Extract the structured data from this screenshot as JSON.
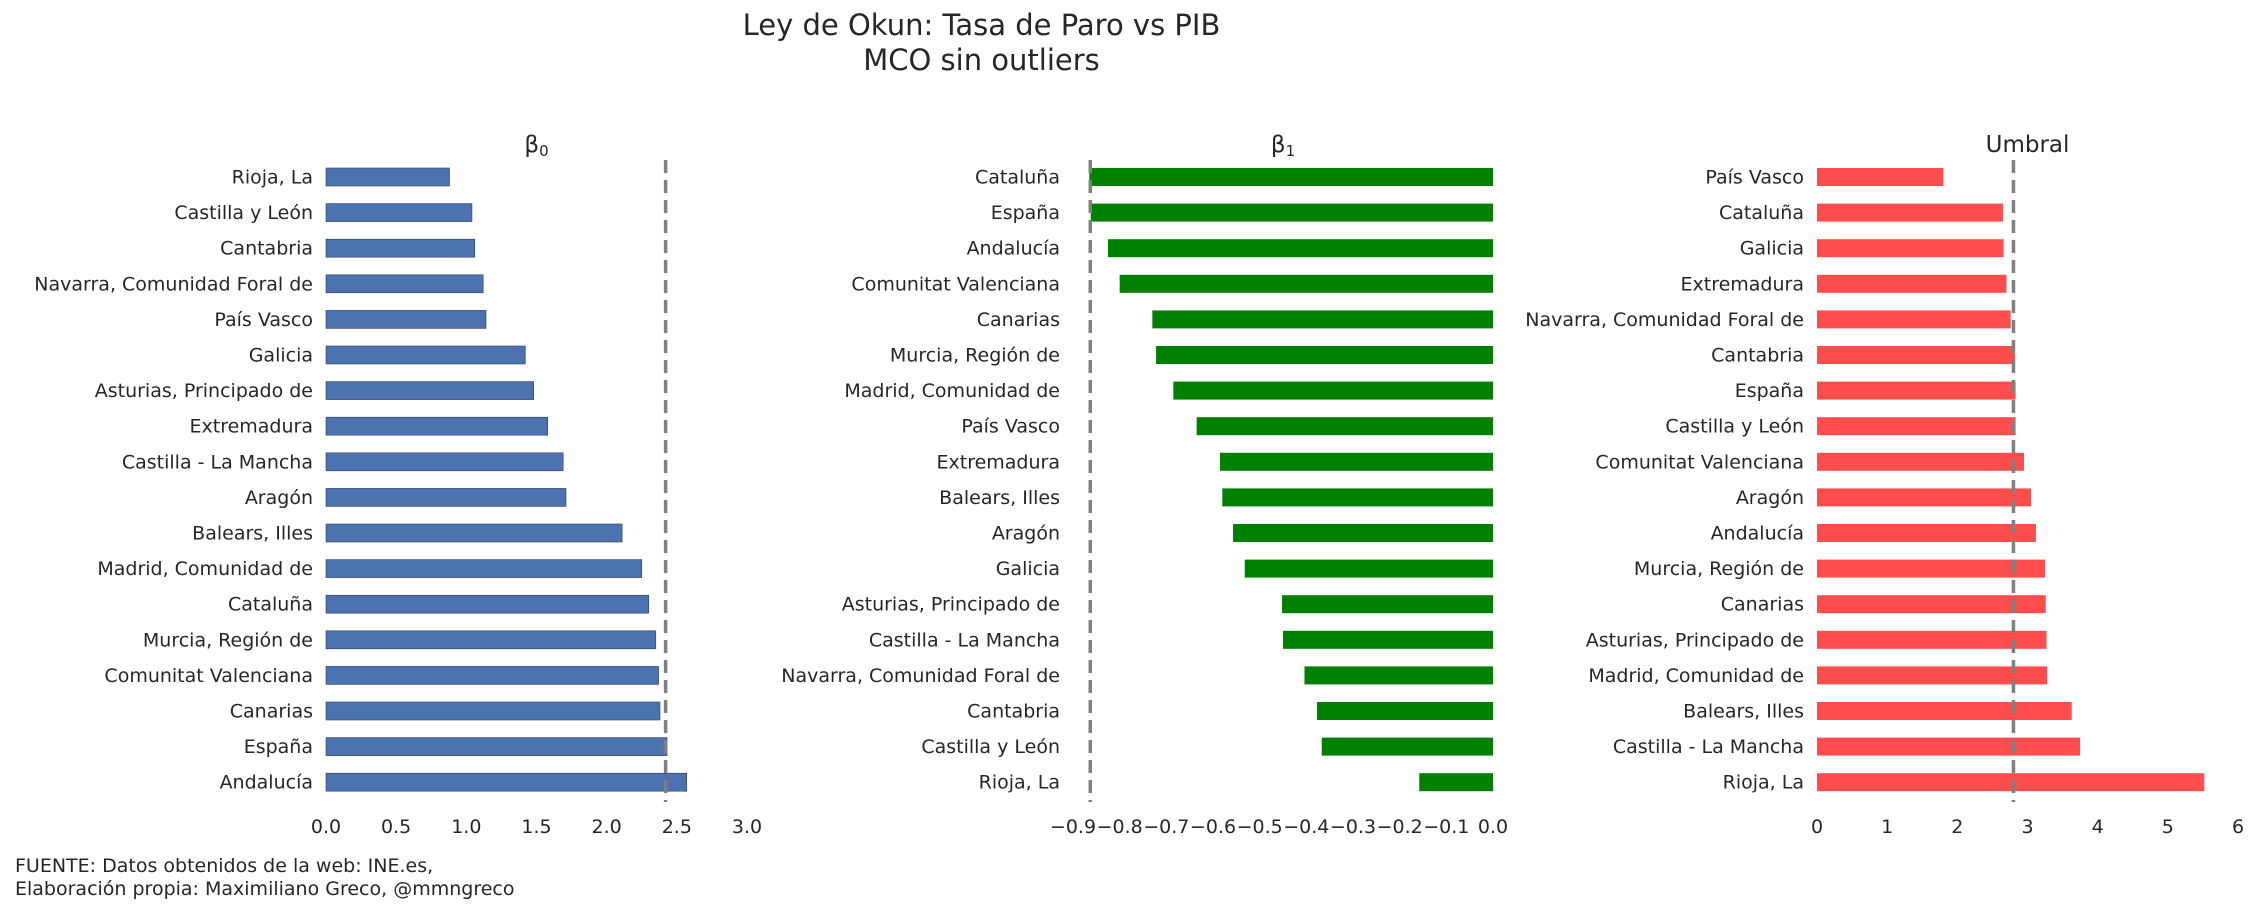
{
  "title": "Ley de Okun: Tasa de Paro vs PIB",
  "subtitle": "MCO sin outliers",
  "source_note": {
    "line1": "FUENTE: Datos obtenidos de la web: INE.es,",
    "line2": "Elaboración propia: Maximiliano Greco, @mmngreco"
  },
  "colors": {
    "beta0": "#4c72b0",
    "beta1": "#008000",
    "umbral": "#ff4c4c",
    "reference_line": "#808080"
  },
  "chart_data": [
    {
      "type": "bar",
      "orientation": "horizontal",
      "title": "β0",
      "xlim": [
        0,
        3.0
      ],
      "xticks": [
        "0.0",
        "0.5",
        "1.0",
        "1.5",
        "2.0",
        "2.5",
        "3.0"
      ],
      "xtick_values": [
        0,
        0.5,
        1.0,
        1.5,
        2.0,
        2.5,
        3.0
      ],
      "reference_line": 2.42,
      "categories": [
        "Rioja, La",
        "Castilla y León",
        "Cantabria",
        "Navarra, Comunidad Foral de",
        "País Vasco",
        "Galicia",
        "Asturias, Principado de",
        "Extremadura",
        "Castilla - La Mancha",
        "Aragón",
        "Balears, Illes",
        "Madrid, Comunidad de",
        "Cataluña",
        "Murcia, Región de",
        "Comunitat Valenciana",
        "Canarias",
        "España",
        "Andalucía"
      ],
      "values": [
        0.88,
        1.04,
        1.06,
        1.12,
        1.14,
        1.42,
        1.48,
        1.58,
        1.69,
        1.71,
        2.11,
        2.25,
        2.3,
        2.35,
        2.37,
        2.38,
        2.43,
        2.57
      ]
    },
    {
      "type": "bar",
      "orientation": "horizontal",
      "title": "β1",
      "xlim": [
        -0.9,
        0.0
      ],
      "xticks": [
        "−0.9",
        "−0.8",
        "−0.7",
        "−0.6",
        "−0.5",
        "−0.4",
        "−0.3",
        "−0.2",
        "−0.1",
        "0.0"
      ],
      "xtick_values": [
        -0.9,
        -0.8,
        -0.7,
        -0.6,
        -0.5,
        -0.4,
        -0.3,
        -0.2,
        -0.1,
        0.0
      ],
      "reference_line": -0.863,
      "categories": [
        "Cataluña",
        "España",
        "Andalucía",
        "Comunitat Valenciana",
        "Canarias",
        "Murcia, Región de",
        "Madrid, Comunidad de",
        "País Vasco",
        "Extremadura",
        "Balears, Illes",
        "Aragón",
        "Galicia",
        "Asturias, Principado de",
        "Castilla - La Mancha",
        "Navarra, Comunidad Foral de",
        "Cantabria",
        "Castilla y León",
        "Rioja, La"
      ],
      "values": [
        -0.865,
        -0.862,
        -0.825,
        -0.8,
        -0.73,
        -0.722,
        -0.685,
        -0.635,
        -0.585,
        -0.58,
        -0.557,
        -0.532,
        -0.452,
        -0.45,
        -0.404,
        -0.377,
        -0.367,
        -0.158
      ]
    },
    {
      "type": "bar",
      "orientation": "horizontal",
      "title": "Umbral",
      "xlim": [
        0,
        6
      ],
      "xticks": [
        "0",
        "1",
        "2",
        "3",
        "4",
        "5",
        "6"
      ],
      "xtick_values": [
        0,
        1,
        2,
        3,
        4,
        5,
        6
      ],
      "reference_line": 2.8,
      "categories": [
        "País Vasco",
        "Cataluña",
        "Galicia",
        "Extremadura",
        "Navarra, Comunidad Foral de",
        "Cantabria",
        "España",
        "Castilla y León",
        "Comunitat Valenciana",
        "Aragón",
        "Andalucía",
        "Murcia, Región de",
        "Canarias",
        "Asturias, Principado de",
        "Madrid, Comunidad de",
        "Balears, Illes",
        "Castilla - La Mancha",
        "Rioja, La"
      ],
      "values": [
        1.8,
        2.65,
        2.66,
        2.7,
        2.76,
        2.82,
        2.83,
        2.83,
        2.95,
        3.05,
        3.12,
        3.25,
        3.26,
        3.27,
        3.28,
        3.63,
        3.75,
        5.52
      ]
    }
  ]
}
